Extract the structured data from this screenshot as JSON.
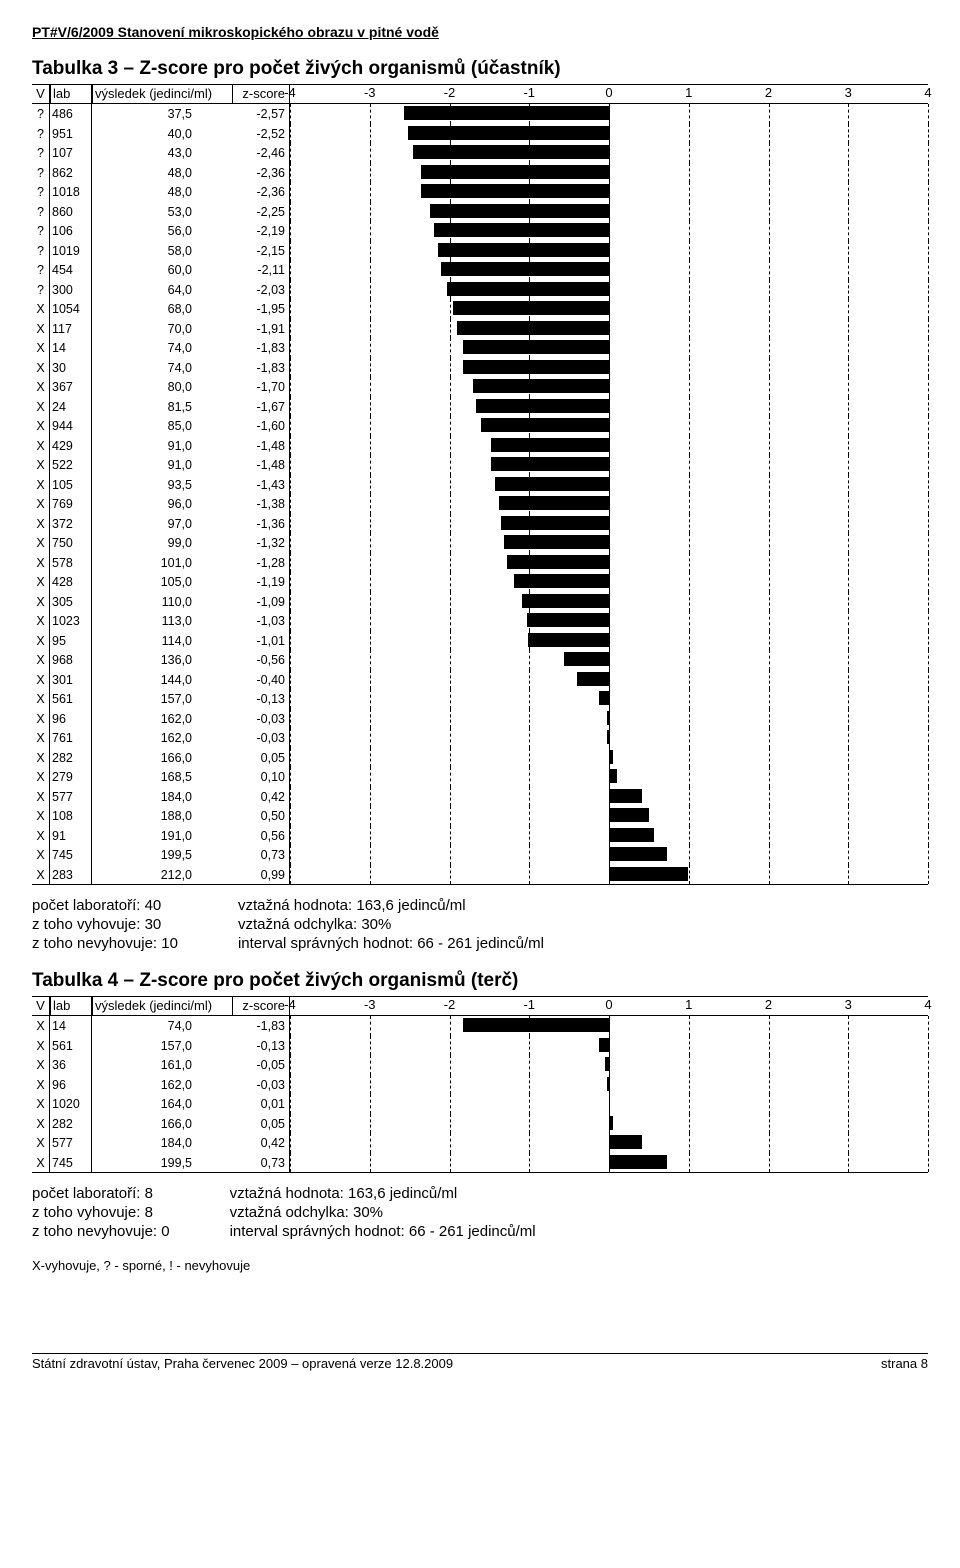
{
  "doc_header": "PT#V/6/2009   Stanovení mikroskopického obrazu v pitné vodě",
  "table3": {
    "title": "Tabulka 3 – Z-score pro počet živých organismů (účastník)",
    "head": {
      "v": "V",
      "lab": "lab",
      "res": "výsledek (jedinci/ml)",
      "z": "z-score"
    },
    "axis": {
      "min": -4,
      "max": 4,
      "ticks": [
        -4,
        -3,
        -2,
        -1,
        0,
        1,
        2,
        3,
        4
      ]
    },
    "rows": [
      {
        "v": "?",
        "lab": "486",
        "res": "37,5",
        "z": "-2,57",
        "zv": -2.57
      },
      {
        "v": "?",
        "lab": "951",
        "res": "40,0",
        "z": "-2,52",
        "zv": -2.52
      },
      {
        "v": "?",
        "lab": "107",
        "res": "43,0",
        "z": "-2,46",
        "zv": -2.46
      },
      {
        "v": "?",
        "lab": "862",
        "res": "48,0",
        "z": "-2,36",
        "zv": -2.36
      },
      {
        "v": "?",
        "lab": "1018",
        "res": "48,0",
        "z": "-2,36",
        "zv": -2.36
      },
      {
        "v": "?",
        "lab": "860",
        "res": "53,0",
        "z": "-2,25",
        "zv": -2.25
      },
      {
        "v": "?",
        "lab": "106",
        "res": "56,0",
        "z": "-2,19",
        "zv": -2.19
      },
      {
        "v": "?",
        "lab": "1019",
        "res": "58,0",
        "z": "-2,15",
        "zv": -2.15
      },
      {
        "v": "?",
        "lab": "454",
        "res": "60,0",
        "z": "-2,11",
        "zv": -2.11
      },
      {
        "v": "?",
        "lab": "300",
        "res": "64,0",
        "z": "-2,03",
        "zv": -2.03
      },
      {
        "v": "X",
        "lab": "1054",
        "res": "68,0",
        "z": "-1,95",
        "zv": -1.95
      },
      {
        "v": "X",
        "lab": "117",
        "res": "70,0",
        "z": "-1,91",
        "zv": -1.91
      },
      {
        "v": "X",
        "lab": "14",
        "res": "74,0",
        "z": "-1,83",
        "zv": -1.83
      },
      {
        "v": "X",
        "lab": "30",
        "res": "74,0",
        "z": "-1,83",
        "zv": -1.83
      },
      {
        "v": "X",
        "lab": "367",
        "res": "80,0",
        "z": "-1,70",
        "zv": -1.7
      },
      {
        "v": "X",
        "lab": "24",
        "res": "81,5",
        "z": "-1,67",
        "zv": -1.67
      },
      {
        "v": "X",
        "lab": "944",
        "res": "85,0",
        "z": "-1,60",
        "zv": -1.6
      },
      {
        "v": "X",
        "lab": "429",
        "res": "91,0",
        "z": "-1,48",
        "zv": -1.48
      },
      {
        "v": "X",
        "lab": "522",
        "res": "91,0",
        "z": "-1,48",
        "zv": -1.48
      },
      {
        "v": "X",
        "lab": "105",
        "res": "93,5",
        "z": "-1,43",
        "zv": -1.43
      },
      {
        "v": "X",
        "lab": "769",
        "res": "96,0",
        "z": "-1,38",
        "zv": -1.38
      },
      {
        "v": "X",
        "lab": "372",
        "res": "97,0",
        "z": "-1,36",
        "zv": -1.36
      },
      {
        "v": "X",
        "lab": "750",
        "res": "99,0",
        "z": "-1,32",
        "zv": -1.32
      },
      {
        "v": "X",
        "lab": "578",
        "res": "101,0",
        "z": "-1,28",
        "zv": -1.28
      },
      {
        "v": "X",
        "lab": "428",
        "res": "105,0",
        "z": "-1,19",
        "zv": -1.19
      },
      {
        "v": "X",
        "lab": "305",
        "res": "110,0",
        "z": "-1,09",
        "zv": -1.09
      },
      {
        "v": "X",
        "lab": "1023",
        "res": "113,0",
        "z": "-1,03",
        "zv": -1.03
      },
      {
        "v": "X",
        "lab": "95",
        "res": "114,0",
        "z": "-1,01",
        "zv": -1.01
      },
      {
        "v": "X",
        "lab": "968",
        "res": "136,0",
        "z": "-0,56",
        "zv": -0.56
      },
      {
        "v": "X",
        "lab": "301",
        "res": "144,0",
        "z": "-0,40",
        "zv": -0.4
      },
      {
        "v": "X",
        "lab": "561",
        "res": "157,0",
        "z": "-0,13",
        "zv": -0.13
      },
      {
        "v": "X",
        "lab": "96",
        "res": "162,0",
        "z": "-0,03",
        "zv": -0.03
      },
      {
        "v": "X",
        "lab": "761",
        "res": "162,0",
        "z": "-0,03",
        "zv": -0.03
      },
      {
        "v": "X",
        "lab": "282",
        "res": "166,0",
        "z": "0,05",
        "zv": 0.05
      },
      {
        "v": "X",
        "lab": "279",
        "res": "168,5",
        "z": "0,10",
        "zv": 0.1
      },
      {
        "v": "X",
        "lab": "577",
        "res": "184,0",
        "z": "0,42",
        "zv": 0.42
      },
      {
        "v": "X",
        "lab": "108",
        "res": "188,0",
        "z": "0,50",
        "zv": 0.5
      },
      {
        "v": "X",
        "lab": "91",
        "res": "191,0",
        "z": "0,56",
        "zv": 0.56
      },
      {
        "v": "X",
        "lab": "745",
        "res": "199,5",
        "z": "0,73",
        "zv": 0.73
      },
      {
        "v": "X",
        "lab": "283",
        "res": "212,0",
        "z": "0,99",
        "zv": 0.99
      }
    ],
    "summary_left": [
      "počet laboratoří: 40",
      "z toho vyhovuje: 30",
      "z toho nevyhovuje: 10"
    ],
    "summary_right": [
      "vztažná hodnota: 163,6 jedinců/ml",
      "vztažná odchylka: 30%",
      "interval správných hodnot: 66 - 261 jedinců/ml"
    ]
  },
  "table4": {
    "title": "Tabulka 4 – Z-score pro počet živých organismů (terč)",
    "head": {
      "v": "V",
      "lab": "lab",
      "res": "výsledek (jedinci/ml)",
      "z": "z-score"
    },
    "axis": {
      "min": -4,
      "max": 4,
      "ticks": [
        -4,
        -3,
        -2,
        -1,
        0,
        1,
        2,
        3,
        4
      ]
    },
    "rows": [
      {
        "v": "X",
        "lab": "14",
        "res": "74,0",
        "z": "-1,83",
        "zv": -1.83
      },
      {
        "v": "X",
        "lab": "561",
        "res": "157,0",
        "z": "-0,13",
        "zv": -0.13
      },
      {
        "v": "X",
        "lab": "36",
        "res": "161,0",
        "z": "-0,05",
        "zv": -0.05
      },
      {
        "v": "X",
        "lab": "96",
        "res": "162,0",
        "z": "-0,03",
        "zv": -0.03
      },
      {
        "v": "X",
        "lab": "1020",
        "res": "164,0",
        "z": "0,01",
        "zv": 0.01
      },
      {
        "v": "X",
        "lab": "282",
        "res": "166,0",
        "z": "0,05",
        "zv": 0.05
      },
      {
        "v": "X",
        "lab": "577",
        "res": "184,0",
        "z": "0,42",
        "zv": 0.42
      },
      {
        "v": "X",
        "lab": "745",
        "res": "199,5",
        "z": "0,73",
        "zv": 0.73
      }
    ],
    "summary_left": [
      "počet laboratoří: 8",
      "z toho vyhovuje: 8",
      "z toho nevyhovuje: 0"
    ],
    "summary_right": [
      "vztažná hodnota: 163,6 jedinců/ml",
      "vztažná odchylka: 30%",
      "interval správných hodnot: 66 - 261 jedinců/ml"
    ],
    "legend": "X-vyhovuje, ? - sporné, ! - nevyhovuje"
  },
  "footer": {
    "left": "Státní zdravotní ústav, Praha červenec 2009 – opravená verze 12.8.2009",
    "right": "strana 8"
  }
}
